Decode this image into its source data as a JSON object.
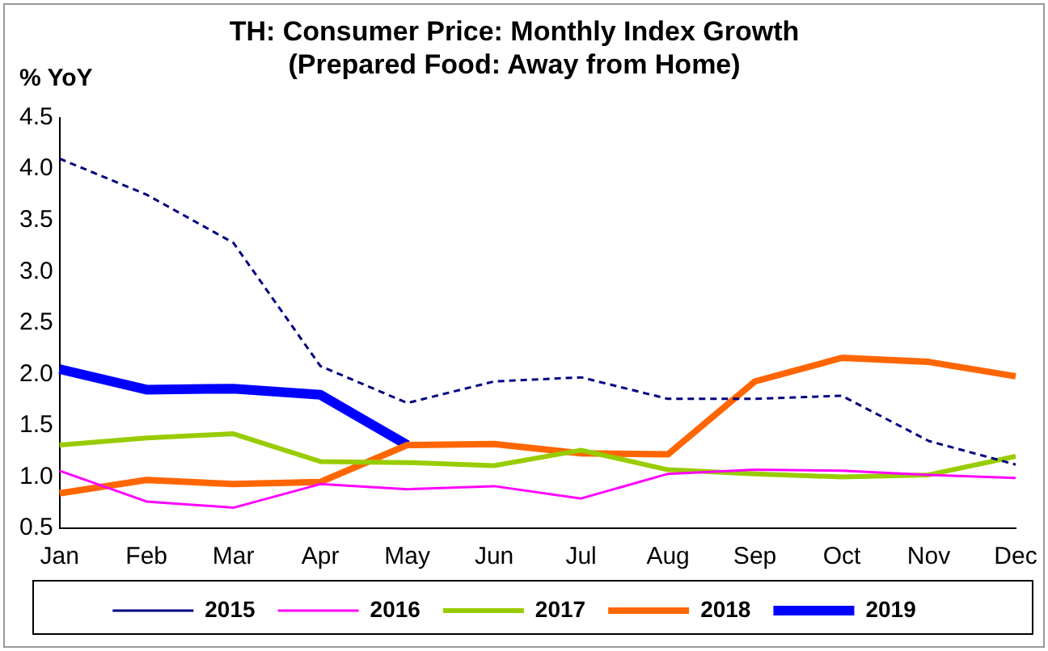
{
  "chart_data": {
    "type": "line",
    "title": [
      "TH: Consumer Price: Monthly Index Growth",
      "(Prepared Food: Away from Home)"
    ],
    "ylabel": "% YoY",
    "categories": [
      "Jan",
      "Feb",
      "Mar",
      "Apr",
      "May",
      "Jun",
      "Jul",
      "Aug",
      "Sep",
      "Oct",
      "Nov",
      "Dec"
    ],
    "series": [
      {
        "name": "2015",
        "color": "#000080",
        "line_style": "dashed",
        "values": [
          4.1,
          3.75,
          3.28,
          2.08,
          1.72,
          1.93,
          1.97,
          1.76,
          1.76,
          1.79,
          1.35,
          1.12
        ]
      },
      {
        "name": "2016",
        "color": "#ff00ff",
        "values": [
          1.06,
          0.76,
          0.7,
          0.93,
          0.88,
          0.91,
          0.79,
          1.03,
          1.07,
          1.06,
          1.02,
          0.99
        ]
      },
      {
        "name": "2017",
        "color": "#99cc00",
        "values": [
          1.31,
          1.38,
          1.42,
          1.15,
          1.14,
          1.11,
          1.26,
          1.07,
          1.03,
          1.0,
          1.02,
          1.2
        ]
      },
      {
        "name": "2018",
        "color": "#ff6600",
        "values": [
          0.84,
          0.97,
          0.93,
          0.95,
          1.31,
          1.32,
          1.23,
          1.22,
          1.93,
          2.16,
          2.12,
          1.98
        ]
      },
      {
        "name": "2019",
        "color": "#0000ff",
        "values": [
          2.05,
          1.85,
          1.86,
          1.8,
          1.31,
          null,
          null,
          null,
          null,
          null,
          null,
          null
        ]
      }
    ],
    "ylim": [
      0.5,
      4.5
    ],
    "yticks": [
      0.5,
      {
        "value": 1,
        "label": "1.0"
      },
      1.5,
      {
        "value": 2,
        "label": "2.0"
      },
      2.5,
      {
        "value": 3,
        "label": "3.0"
      },
      3.5,
      {
        "value": 4,
        "label": "4.0"
      },
      4.5
    ],
    "grid": false,
    "legend": "bottom",
    "marker": "none"
  }
}
